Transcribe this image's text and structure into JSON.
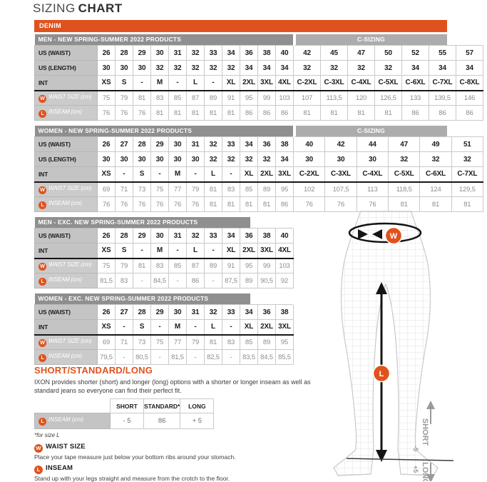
{
  "title": {
    "light": "SIZING",
    "bold": "CHART"
  },
  "banner": {
    "label": "DENIM"
  },
  "colors": {
    "accent_orange": "#E0521D",
    "header_gray": "#8F8F8F",
    "csizing_gray": "#ACACAC"
  },
  "sizing_tables": [
    {
      "title": "MEN - NEW SPRING-SUMMER 2022 PRODUCTS",
      "c_title": "C-SIZING",
      "rows": [
        {
          "label": "US (WAIST)",
          "style": "size",
          "values": [
            "26",
            "28",
            "29",
            "30",
            "31",
            "32",
            "33",
            "34",
            "36",
            "38",
            "40"
          ],
          "c_values": [
            "42",
            "45",
            "47",
            "50",
            "52",
            "55",
            "57"
          ]
        },
        {
          "label": "US (LENGTH)",
          "style": "size",
          "values": [
            "30",
            "30",
            "30",
            "32",
            "32",
            "32",
            "32",
            "32",
            "34",
            "34",
            "34"
          ],
          "c_values": [
            "32",
            "32",
            "32",
            "32",
            "34",
            "34",
            "34"
          ]
        },
        {
          "label": "INT",
          "style": "size",
          "divider": true,
          "values": [
            "XS",
            "S",
            "-",
            "M",
            "-",
            "L",
            "-",
            "XL",
            "2XL",
            "3XL",
            "4XL"
          ],
          "c_values": [
            "C-2XL",
            "C-3XL",
            "C-4XL",
            "C-5XL",
            "C-6XL",
            "C-7XL",
            "C-8XL"
          ]
        },
        {
          "label": "WAIST SIZE (cm)",
          "style": "measure",
          "badge": "W",
          "values": [
            "75",
            "79",
            "81",
            "83",
            "85",
            "87",
            "89",
            "91",
            "95",
            "99",
            "103"
          ],
          "c_values": [
            "107",
            "113,5",
            "120",
            "126,5",
            "133",
            "139,5",
            "146"
          ]
        },
        {
          "label": "INSEAM (cm)",
          "style": "measure",
          "badge": "L",
          "values": [
            "76",
            "76",
            "76",
            "81",
            "81",
            "81",
            "81",
            "81",
            "86",
            "86",
            "86"
          ],
          "c_values": [
            "81",
            "81",
            "81",
            "81",
            "86",
            "86",
            "86"
          ]
        }
      ]
    },
    {
      "title": "WOMEN - NEW SPRING-SUMMER 2022 PRODUCTS",
      "c_title": "C-SIZING",
      "rows": [
        {
          "label": "US (WAIST)",
          "style": "size",
          "values": [
            "26",
            "27",
            "28",
            "29",
            "30",
            "31",
            "32",
            "33",
            "34",
            "36",
            "38"
          ],
          "c_values": [
            "40",
            "42",
            "44",
            "47",
            "49",
            "51"
          ]
        },
        {
          "label": "US (LENGTH)",
          "style": "size",
          "values": [
            "30",
            "30",
            "30",
            "30",
            "30",
            "30",
            "32",
            "32",
            "32",
            "32",
            "34"
          ],
          "c_values": [
            "30",
            "30",
            "30",
            "32",
            "32",
            "32"
          ]
        },
        {
          "label": "INT",
          "style": "size",
          "divider": true,
          "values": [
            "XS",
            "-",
            "S",
            "-",
            "M",
            "-",
            "L",
            "-",
            "XL",
            "2XL",
            "3XL"
          ],
          "c_values": [
            "C-2XL",
            "C-3XL",
            "C-4XL",
            "C-5XL",
            "C-6XL",
            "C-7XL"
          ]
        },
        {
          "label": "WAIST SIZE (cm)",
          "style": "measure",
          "badge": "W",
          "values": [
            "69",
            "71",
            "73",
            "75",
            "77",
            "79",
            "81",
            "83",
            "85",
            "89",
            "95"
          ],
          "c_values": [
            "102",
            "107,5",
            "113",
            "118,5",
            "124",
            "129,5"
          ]
        },
        {
          "label": "INSEAM (cm)",
          "style": "measure",
          "badge": "L",
          "values": [
            "76",
            "76",
            "76",
            "76",
            "76",
            "76",
            "81",
            "81",
            "81",
            "81",
            "86"
          ],
          "c_values": [
            "76",
            "76",
            "76",
            "81",
            "81",
            "81"
          ]
        }
      ]
    },
    {
      "title": "MEN - EXC. NEW SPRING-SUMMER 2022 PRODUCTS",
      "rows": [
        {
          "label": "US (WAIST)",
          "style": "size",
          "values": [
            "26",
            "28",
            "29",
            "30",
            "31",
            "32",
            "33",
            "34",
            "36",
            "38",
            "40"
          ],
          "c_values": []
        },
        {
          "label": "INT",
          "style": "size",
          "divider": true,
          "values": [
            "XS",
            "S",
            "-",
            "M",
            "-",
            "L",
            "-",
            "XL",
            "2XL",
            "3XL",
            "4XL"
          ],
          "c_values": []
        },
        {
          "label": "WAIST SIZE (cm)",
          "style": "measure",
          "badge": "W",
          "values": [
            "75",
            "79",
            "81",
            "83",
            "85",
            "87",
            "89",
            "91",
            "95",
            "99",
            "103"
          ],
          "c_values": []
        },
        {
          "label": "INSEAM (cm)",
          "style": "measure",
          "badge": "L",
          "values": [
            "81,5",
            "83",
            "-",
            "84,5",
            "-",
            "86",
            "-",
            "87,5",
            "89",
            "90,5",
            "92"
          ],
          "c_values": []
        }
      ]
    },
    {
      "title": "WOMEN - EXC. NEW SPRING-SUMMER 2022 PRODUCTS",
      "rows": [
        {
          "label": "US (WAIST)",
          "style": "size",
          "values": [
            "26",
            "27",
            "28",
            "29",
            "30",
            "31",
            "32",
            "33",
            "34",
            "36",
            "38"
          ],
          "c_values": []
        },
        {
          "label": "INT",
          "style": "size",
          "divider": true,
          "values": [
            "XS",
            "-",
            "S",
            "-",
            "M",
            "-",
            "L",
            "-",
            "XL",
            "2XL",
            "3XL"
          ],
          "c_values": []
        },
        {
          "label": "WAIST SIZE (cm)",
          "style": "measure",
          "badge": "W",
          "values": [
            "69",
            "71",
            "73",
            "75",
            "77",
            "79",
            "81",
            "83",
            "85",
            "89",
            "95"
          ],
          "c_values": []
        },
        {
          "label": "INSEAM (cm)",
          "style": "measure",
          "badge": "L",
          "values": [
            "79,5",
            "-",
            "80,5",
            "-",
            "81,5",
            "-",
            "82,5",
            "-",
            "83,5",
            "84,5",
            "85,5"
          ],
          "c_values": []
        }
      ]
    }
  ],
  "short_standard_long": {
    "heading": "SHORT/STANDARD/LONG",
    "description": "IXON provides shorter (short) and longer (long) options with a shorter or longer inseam as well as standard jeans so everyone can find their perfect fit.",
    "columns": [
      "SHORT",
      "STANDARD*",
      "LONG"
    ],
    "row": {
      "badge": "L",
      "label": "INSEAM (cm)",
      "values": [
        "- 5",
        "86",
        "+ 5"
      ]
    },
    "footnote": "*for size L"
  },
  "notes": [
    {
      "badge": "W",
      "heading": "WAIST SIZE",
      "text": "Place your tape measure just below your bottom ribs around your stomach."
    },
    {
      "badge": "L",
      "heading": "INSEAM",
      "text": "Stand up with your legs straight and measure from the crotch to the floor."
    }
  ],
  "figure": {
    "waist_badge": "W",
    "inseam_badge": "L",
    "short_label": "SHORT",
    "short_value": "-5",
    "long_label": "LONG",
    "long_value": "+5"
  }
}
